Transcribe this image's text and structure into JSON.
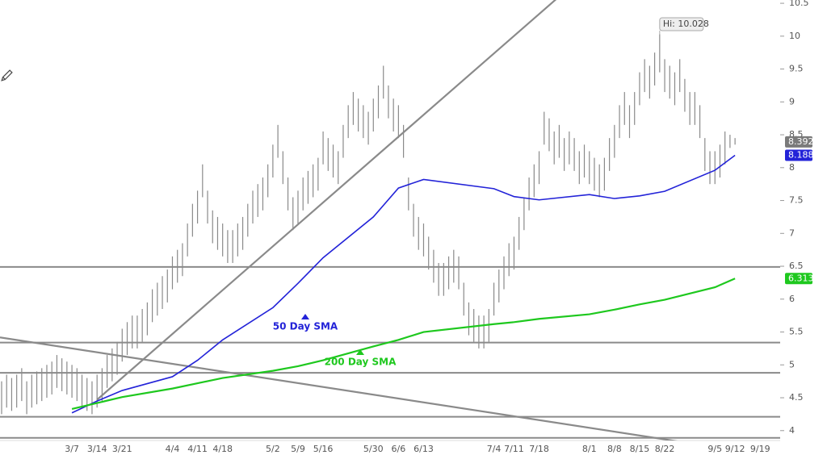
{
  "chart_data": {
    "type": "hl_bar",
    "categories": [
      null,
      null,
      null,
      null,
      null,
      null,
      null,
      null,
      null,
      null,
      null,
      null,
      null,
      null,
      "3/7",
      null,
      null,
      null,
      null,
      "3/14",
      null,
      null,
      null,
      null,
      "3/21",
      null,
      null,
      null,
      null,
      null,
      null,
      null,
      null,
      null,
      "4/4",
      null,
      null,
      null,
      null,
      "4/11",
      null,
      null,
      null,
      null,
      "4/18",
      null,
      null,
      null,
      null,
      null,
      null,
      null,
      null,
      null,
      "5/2",
      null,
      null,
      null,
      null,
      "5/9",
      null,
      null,
      null,
      null,
      "5/16",
      null,
      null,
      null,
      null,
      null,
      null,
      null,
      null,
      null,
      "5/30",
      null,
      null,
      null,
      null,
      "6/6",
      null,
      null,
      null,
      null,
      "6/13",
      null,
      null,
      null,
      null,
      null,
      null,
      null,
      null,
      null,
      null,
      null,
      null,
      null,
      "7/4",
      null,
      null,
      null,
      "7/11",
      null,
      null,
      null,
      null,
      "7/18",
      null,
      null,
      null,
      null,
      null,
      null,
      null,
      null,
      null,
      "8/1",
      null,
      null,
      null,
      null,
      "8/8",
      null,
      null,
      null,
      null,
      "8/15",
      null,
      null,
      null,
      null,
      "8/22",
      null,
      null,
      null,
      null,
      null,
      null,
      null,
      null,
      null,
      "9/5",
      null,
      null,
      null,
      "9/12",
      null,
      null,
      null,
      null,
      "9/19"
    ],
    "high": [
      4.75,
      4.85,
      4.8,
      4.85,
      4.95,
      4.75,
      4.85,
      4.9,
      4.95,
      5,
      5.05,
      5.15,
      5.1,
      5.05,
      5,
      4.95,
      4.85,
      4.8,
      4.75,
      4.85,
      4.95,
      5.15,
      5.25,
      5.35,
      5.55,
      5.65,
      5.75,
      5.75,
      5.85,
      5.95,
      6.15,
      6.25,
      6.35,
      6.45,
      6.65,
      6.75,
      6.85,
      7.15,
      7.45,
      7.65,
      8.05,
      7.65,
      7.35,
      7.25,
      7.15,
      7.05,
      7.05,
      7.15,
      7.25,
      7.45,
      7.65,
      7.75,
      7.85,
      8.05,
      8.35,
      8.65,
      8.25,
      7.85,
      7.55,
      7.65,
      7.85,
      7.95,
      8.05,
      8.15,
      8.55,
      8.45,
      8.35,
      8.25,
      8.65,
      8.95,
      9.15,
      9.05,
      8.95,
      8.85,
      9.05,
      9.25,
      9.55,
      9.25,
      9.05,
      8.95,
      8.65,
      7.85,
      7.45,
      7.25,
      7.15,
      6.95,
      6.75,
      6.55,
      6.55,
      6.65,
      6.75,
      6.65,
      6.25,
      5.95,
      5.85,
      5.75,
      5.75,
      5.85,
      6.25,
      6.45,
      6.65,
      6.85,
      6.95,
      7.25,
      7.55,
      7.85,
      8.05,
      8.25,
      8.85,
      8.75,
      8.55,
      8.65,
      8.45,
      8.55,
      8.45,
      8.25,
      8.35,
      8.25,
      8.15,
      8.05,
      8.15,
      8.45,
      8.65,
      8.95,
      9.15,
      8.95,
      9.15,
      9.45,
      9.65,
      9.55,
      9.75,
      10.028,
      9.65,
      9.55,
      9.45,
      9.65,
      9.35,
      9.15,
      9.15,
      8.95,
      8.45,
      8.25,
      8.25,
      8.35,
      8.55,
      8.5,
      8.45,
      null,
      null,
      null,
      null,
      null
    ],
    "low": [
      4.25,
      4.35,
      4.3,
      4.35,
      4.45,
      4.25,
      4.35,
      4.4,
      4.45,
      4.5,
      4.55,
      4.65,
      4.6,
      4.55,
      4.5,
      4.45,
      4.35,
      4.3,
      4.25,
      4.35,
      4.45,
      4.65,
      4.75,
      4.85,
      5.05,
      5.15,
      5.25,
      5.25,
      5.35,
      5.45,
      5.65,
      5.75,
      5.85,
      5.95,
      6.15,
      6.25,
      6.35,
      6.65,
      6.95,
      7.15,
      7.55,
      7.15,
      6.85,
      6.75,
      6.65,
      6.55,
      6.55,
      6.65,
      6.75,
      6.95,
      7.15,
      7.25,
      7.35,
      7.55,
      7.85,
      8.15,
      7.75,
      7.35,
      7.05,
      7.15,
      7.35,
      7.45,
      7.55,
      7.65,
      8.05,
      7.95,
      7.85,
      7.75,
      8.15,
      8.45,
      8.65,
      8.55,
      8.45,
      8.35,
      8.55,
      8.75,
      9.05,
      8.75,
      8.55,
      8.45,
      8.15,
      7.35,
      6.95,
      6.75,
      6.65,
      6.45,
      6.25,
      6.05,
      6.05,
      6.15,
      6.25,
      6.15,
      5.75,
      5.45,
      5.35,
      5.25,
      5.25,
      5.35,
      5.75,
      5.95,
      6.15,
      6.35,
      6.45,
      6.75,
      7.05,
      7.35,
      7.55,
      7.75,
      8.35,
      8.25,
      8.05,
      8.15,
      7.95,
      8.05,
      7.95,
      7.75,
      7.85,
      7.75,
      7.65,
      7.55,
      7.65,
      7.95,
      8.15,
      8.45,
      8.65,
      8.45,
      8.65,
      8.95,
      9.15,
      9.05,
      9.25,
      9.45,
      9.15,
      9.05,
      8.95,
      9.15,
      8.85,
      8.65,
      8.65,
      8.45,
      7.95,
      7.75,
      7.75,
      7.85,
      8.05,
      8.3,
      8.35,
      null,
      null,
      null,
      null,
      null
    ],
    "color": "#8a8a8a",
    "last_price": 8.392,
    "high_annotation": "Hi: 10.028",
    "series": [
      {
        "name": "50 Day SMA",
        "color": "#2323d8",
        "x": [
          "3/7",
          "3/14",
          "3/21",
          "4/4",
          "4/11",
          "4/18",
          "5/2",
          "5/9",
          "5/16",
          "5/30",
          "6/6",
          "6/13",
          "7/4",
          "7/11",
          "7/18",
          "8/1",
          "8/8",
          "8/15",
          "8/22",
          "9/5",
          "9/12"
        ],
        "values": [
          4.27,
          4.45,
          4.61,
          4.82,
          5.07,
          5.38,
          5.87,
          6.24,
          6.63,
          7.25,
          7.69,
          7.82,
          7.68,
          7.56,
          7.51,
          7.59,
          7.53,
          7.57,
          7.64,
          7.96,
          8.188
        ]
      },
      {
        "name": "200 Day SMA",
        "color": "#1ec81e",
        "x": [
          "3/7",
          "3/14",
          "3/21",
          "4/4",
          "4/11",
          "4/18",
          "5/2",
          "5/9",
          "5/16",
          "5/30",
          "6/6",
          "6/13",
          "7/4",
          "7/11",
          "7/18",
          "8/1",
          "8/8",
          "8/15",
          "8/22",
          "9/5",
          "9/12"
        ],
        "values": [
          4.33,
          4.42,
          4.51,
          4.64,
          4.72,
          4.8,
          4.91,
          4.98,
          5.07,
          5.28,
          5.38,
          5.5,
          5.62,
          5.65,
          5.7,
          5.77,
          5.84,
          5.92,
          5.99,
          6.18,
          6.313
        ]
      }
    ],
    "levels": [
      6.49,
      5.34,
      4.88,
      4.21,
      3.89
    ],
    "trendlines": [
      {
        "x": [
          "3/14",
          "6/6"
        ],
        "values": [
          4.47,
          8.47
        ]
      },
      {
        "x": [
          "3/7",
          "9/5"
        ],
        "values": [
          5.25,
          3.75
        ]
      }
    ],
    "ylim": [
      3.85,
      10.55
    ],
    "yticks": [
      10.5,
      10,
      9.5,
      9,
      8.5,
      8,
      7.5,
      7,
      6.5,
      6,
      5.5,
      5,
      4.5,
      4
    ]
  }
}
